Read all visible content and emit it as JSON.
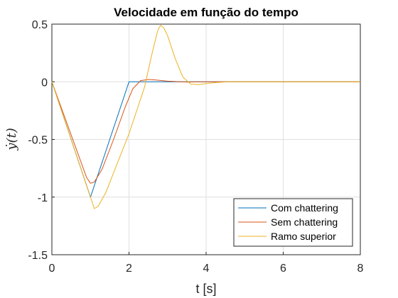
{
  "chart_data": {
    "type": "line",
    "title": "Velocidade em função do tempo",
    "xlabel": "t [s]",
    "ylabel": "ẏ(t)",
    "xlim": [
      0,
      8
    ],
    "ylim": [
      -1.5,
      0.5
    ],
    "xticks": [
      0,
      2,
      4,
      6,
      8
    ],
    "yticks": [
      -1.5,
      -1,
      -0.5,
      0,
      0.5
    ],
    "xtick_labels": [
      "0",
      "2",
      "4",
      "6",
      "8"
    ],
    "ytick_labels": [
      "-1.5",
      "-1",
      "-0.5",
      "0",
      "0.5"
    ],
    "grid": true,
    "legend_position": "bottom-right",
    "series": [
      {
        "name": "Com chattering",
        "color": "#0072BD",
        "points": [
          [
            0,
            0
          ],
          [
            1.0,
            -1.0
          ],
          [
            2.0,
            0.0
          ],
          [
            8.0,
            0.0
          ]
        ]
      },
      {
        "name": "Sem chattering",
        "color": "#D95319",
        "points": [
          [
            0,
            0
          ],
          [
            0.9,
            -0.83
          ],
          [
            1.0,
            -0.88
          ],
          [
            1.1,
            -0.87
          ],
          [
            1.3,
            -0.76
          ],
          [
            1.6,
            -0.5
          ],
          [
            1.9,
            -0.22
          ],
          [
            2.1,
            -0.06
          ],
          [
            2.3,
            0.01
          ],
          [
            2.5,
            0.02
          ],
          [
            2.7,
            0.015
          ],
          [
            3.0,
            0.005
          ],
          [
            3.5,
            -0.002
          ],
          [
            4.0,
            0.0
          ],
          [
            8.0,
            0.0
          ]
        ]
      },
      {
        "name": "Ramo superior",
        "color": "#EDB120",
        "points": [
          [
            0,
            0
          ],
          [
            1.1,
            -1.1
          ],
          [
            1.2,
            -1.08
          ],
          [
            1.4,
            -0.96
          ],
          [
            2.0,
            -0.45
          ],
          [
            2.4,
            -0.05
          ],
          [
            2.6,
            0.25
          ],
          [
            2.75,
            0.45
          ],
          [
            2.82,
            0.49
          ],
          [
            2.9,
            0.47
          ],
          [
            3.0,
            0.4
          ],
          [
            3.2,
            0.2
          ],
          [
            3.4,
            0.04
          ],
          [
            3.6,
            -0.02
          ],
          [
            3.8,
            -0.025
          ],
          [
            4.0,
            -0.015
          ],
          [
            4.3,
            -0.005
          ],
          [
            4.6,
            0.0
          ],
          [
            8.0,
            0.0
          ]
        ]
      }
    ]
  }
}
